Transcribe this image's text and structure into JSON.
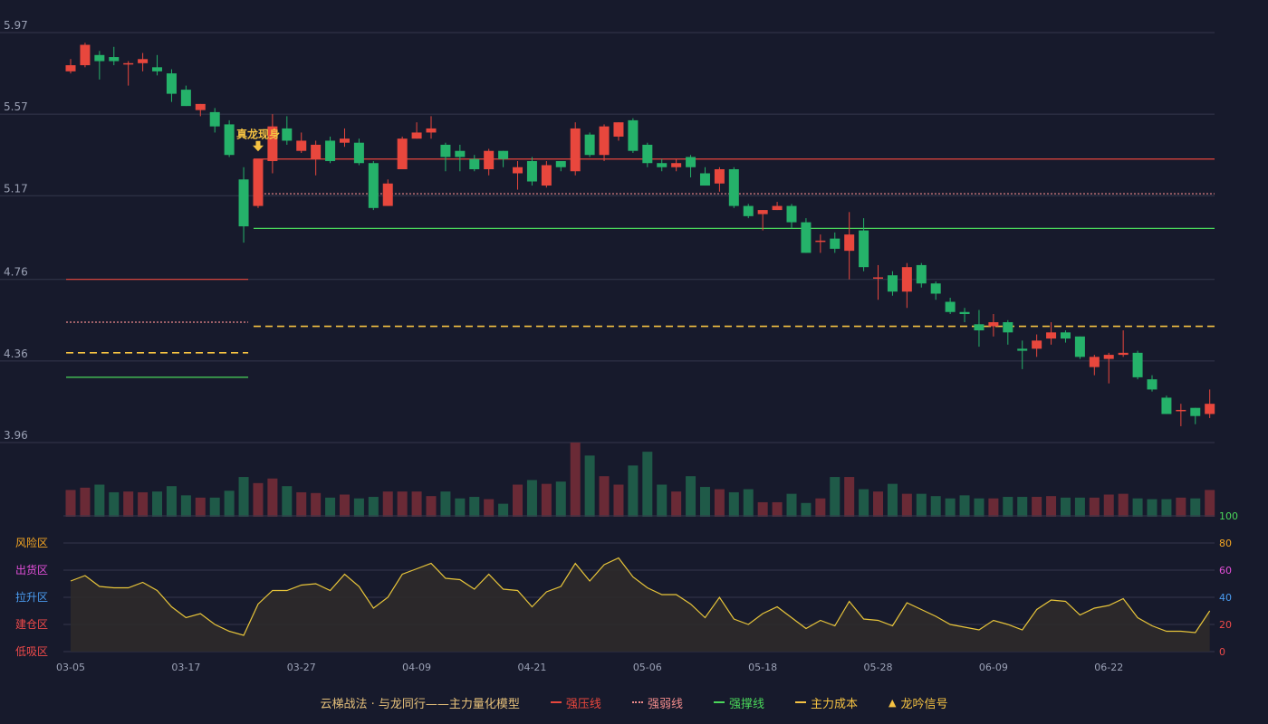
{
  "chart_data": {
    "type": "candlestick",
    "title": "",
    "price_axis": {
      "min": 3.96,
      "max": 5.97,
      "ticks": [
        "5.97",
        "5.57",
        "5.17",
        "4.76",
        "4.36",
        "3.96"
      ]
    },
    "x_ticks": [
      {
        "index": 0,
        "label": "03-05"
      },
      {
        "index": 8,
        "label": "03-17"
      },
      {
        "index": 16,
        "label": "03-27"
      },
      {
        "index": 24,
        "label": "04-09"
      },
      {
        "index": 32,
        "label": "04-21"
      },
      {
        "index": 40,
        "label": "05-06"
      },
      {
        "index": 48,
        "label": "05-18"
      },
      {
        "index": 56,
        "label": "05-28"
      },
      {
        "index": 64,
        "label": "06-09"
      },
      {
        "index": 72,
        "label": "06-22"
      }
    ],
    "candles": [
      [
        5.78,
        5.81,
        5.84,
        5.77
      ],
      [
        5.81,
        5.91,
        5.92,
        5.8
      ],
      [
        5.86,
        5.83,
        5.88,
        5.74
      ],
      [
        5.85,
        5.83,
        5.9,
        5.81
      ],
      [
        5.82,
        5.82,
        5.83,
        5.71
      ],
      [
        5.82,
        5.84,
        5.87,
        5.78
      ],
      [
        5.8,
        5.78,
        5.86,
        5.76
      ],
      [
        5.77,
        5.67,
        5.79,
        5.63
      ],
      [
        5.69,
        5.61,
        5.71,
        5.61
      ],
      [
        5.59,
        5.62,
        5.62,
        5.56
      ],
      [
        5.58,
        5.51,
        5.6,
        5.48
      ],
      [
        5.52,
        5.37,
        5.54,
        5.36
      ],
      [
        5.25,
        5.02,
        5.31,
        4.94
      ],
      [
        5.12,
        5.35,
        5.35,
        5.11
      ],
      [
        5.34,
        5.51,
        5.57,
        5.28
      ],
      [
        5.5,
        5.44,
        5.56,
        5.42
      ],
      [
        5.39,
        5.44,
        5.48,
        5.38
      ],
      [
        5.35,
        5.42,
        5.44,
        5.27
      ],
      [
        5.44,
        5.34,
        5.46,
        5.33
      ],
      [
        5.43,
        5.45,
        5.5,
        5.41
      ],
      [
        5.43,
        5.33,
        5.45,
        5.32
      ],
      [
        5.33,
        5.11,
        5.34,
        5.1
      ],
      [
        5.12,
        5.23,
        5.25,
        5.12
      ],
      [
        5.3,
        5.45,
        5.46,
        5.3
      ],
      [
        5.45,
        5.48,
        5.53,
        5.45
      ],
      [
        5.48,
        5.5,
        5.56,
        5.45
      ],
      [
        5.42,
        5.36,
        5.43,
        5.29
      ],
      [
        5.39,
        5.36,
        5.42,
        5.29
      ],
      [
        5.35,
        5.3,
        5.37,
        5.29
      ],
      [
        5.3,
        5.39,
        5.4,
        5.27
      ],
      [
        5.39,
        5.35,
        5.39,
        5.31
      ],
      [
        5.28,
        5.31,
        5.34,
        5.2
      ],
      [
        5.34,
        5.24,
        5.36,
        5.22
      ],
      [
        5.22,
        5.32,
        5.34,
        5.21
      ],
      [
        5.34,
        5.31,
        5.34,
        5.29
      ],
      [
        5.29,
        5.5,
        5.53,
        5.27
      ],
      [
        5.47,
        5.37,
        5.48,
        5.36
      ],
      [
        5.37,
        5.51,
        5.52,
        5.34
      ],
      [
        5.46,
        5.53,
        5.53,
        5.44
      ],
      [
        5.54,
        5.39,
        5.55,
        5.38
      ],
      [
        5.42,
        5.33,
        5.43,
        5.31
      ],
      [
        5.33,
        5.31,
        5.35,
        5.29
      ],
      [
        5.31,
        5.33,
        5.35,
        5.29
      ],
      [
        5.36,
        5.31,
        5.37,
        5.26
      ],
      [
        5.28,
        5.22,
        5.31,
        5.22
      ],
      [
        5.23,
        5.3,
        5.31,
        5.19
      ],
      [
        5.3,
        5.12,
        5.31,
        5.11
      ],
      [
        5.12,
        5.07,
        5.13,
        5.06
      ],
      [
        5.08,
        5.1,
        5.1,
        5.0
      ],
      [
        5.1,
        5.12,
        5.14,
        5.1
      ],
      [
        5.12,
        5.04,
        5.13,
        5.01
      ],
      [
        5.04,
        4.89,
        5.06,
        4.89
      ],
      [
        4.95,
        4.95,
        4.98,
        4.89
      ],
      [
        4.96,
        4.91,
        4.99,
        4.89
      ],
      [
        4.9,
        4.98,
        5.09,
        4.76
      ],
      [
        5.0,
        4.82,
        5.06,
        4.8
      ],
      [
        4.77,
        4.77,
        4.83,
        4.66
      ],
      [
        4.78,
        4.7,
        4.8,
        4.68
      ],
      [
        4.7,
        4.82,
        4.84,
        4.62
      ],
      [
        4.83,
        4.74,
        4.84,
        4.72
      ],
      [
        4.74,
        4.69,
        4.75,
        4.66
      ],
      [
        4.65,
        4.6,
        4.67,
        4.59
      ],
      [
        4.6,
        4.59,
        4.62,
        4.55
      ],
      [
        4.54,
        4.51,
        4.61,
        4.43
      ],
      [
        4.53,
        4.55,
        4.59,
        4.48
      ],
      [
        4.55,
        4.5,
        4.56,
        4.44
      ],
      [
        4.42,
        4.41,
        4.46,
        4.32
      ],
      [
        4.42,
        4.46,
        4.49,
        4.38
      ],
      [
        4.47,
        4.5,
        4.55,
        4.44
      ],
      [
        4.5,
        4.47,
        4.51,
        4.45
      ],
      [
        4.48,
        4.38,
        4.48,
        4.37
      ],
      [
        4.33,
        4.38,
        4.39,
        4.29
      ],
      [
        4.37,
        4.39,
        4.4,
        4.25
      ],
      [
        4.39,
        4.4,
        4.51,
        4.38
      ],
      [
        4.4,
        4.28,
        4.41,
        4.27
      ],
      [
        4.27,
        4.22,
        4.29,
        4.21
      ],
      [
        4.18,
        4.1,
        4.19,
        4.1
      ],
      [
        4.12,
        4.12,
        4.15,
        4.04
      ],
      [
        4.13,
        4.09,
        4.13,
        4.05
      ],
      [
        4.1,
        4.15,
        4.22,
        4.08
      ]
    ],
    "volume": [
      35,
      38,
      42,
      32,
      33,
      32,
      33,
      40,
      28,
      25,
      25,
      34,
      52,
      44,
      50,
      40,
      32,
      31,
      25,
      29,
      24,
      26,
      33,
      33,
      33,
      27,
      33,
      24,
      26,
      23,
      17,
      42,
      48,
      43,
      46,
      97,
      80,
      53,
      42,
      67,
      85,
      42,
      33,
      53,
      39,
      36,
      32,
      36,
      19,
      19,
      30,
      18,
      24,
      52,
      52,
      36,
      33,
      43,
      30,
      30,
      27,
      24,
      28,
      24,
      24,
      26,
      26,
      26,
      27,
      25,
      25,
      25,
      29,
      30,
      24,
      23,
      23,
      25,
      24,
      35
    ],
    "volume_up_color": "#6a2a36",
    "volume_down_color": "#1f5a48",
    "up_color": "#e8473d",
    "down_color": "#25b26a",
    "reference_lines": [
      {
        "name": "强压线",
        "segments": [
          {
            "from": 0,
            "to": 12,
            "value": 4.76
          },
          {
            "from": 13,
            "to": 79,
            "value": 5.35
          }
        ],
        "color": "#e8473d",
        "dash": ""
      },
      {
        "name": "强弱线",
        "segments": [
          {
            "from": 0,
            "to": 12,
            "value": 4.55
          },
          {
            "from": 13,
            "to": 79,
            "value": 5.18
          }
        ],
        "color": "#f08b8b",
        "dash": "2,2"
      },
      {
        "name": "强撑线",
        "segments": [
          {
            "from": 0,
            "to": 12,
            "value": 4.28
          },
          {
            "from": 13,
            "to": 79,
            "value": 5.01
          }
        ],
        "color": "#4ad65a",
        "dash": ""
      },
      {
        "name": "主力成本",
        "segments": [
          {
            "from": 0,
            "to": 12,
            "value": 4.4
          },
          {
            "from": 13,
            "to": 79,
            "value": 4.53
          }
        ],
        "color": "#f5c242",
        "dash": "8,5"
      }
    ],
    "signals": [
      {
        "index": 13,
        "label": "真龙现身"
      }
    ],
    "oscillator": {
      "range": [
        0,
        100
      ],
      "ticks": [
        "0",
        "20",
        "40",
        "60",
        "80",
        "100"
      ],
      "zones": [
        {
          "label": "风险区",
          "color": "#f5a623"
        },
        {
          "label": "出货区",
          "color": "#e24fd8"
        },
        {
          "label": "拉升区",
          "color": "#4a9cf0"
        },
        {
          "label": "建仓区",
          "color": "#ef4a4a"
        },
        {
          "label": "低吸区",
          "color": "#ef4a4a"
        }
      ],
      "tick_colors": [
        "#ef4a4a",
        "#ef4a4a",
        "#4a9cf0",
        "#e24fd8",
        "#f5a623",
        "#4ad65a"
      ],
      "values": [
        52,
        56,
        48,
        47,
        47,
        51,
        45,
        33,
        25,
        28,
        20,
        15,
        12,
        35,
        45,
        45,
        49,
        50,
        45,
        57,
        48,
        32,
        40,
        57,
        61,
        65,
        54,
        53,
        46,
        57,
        46,
        45,
        33,
        44,
        48,
        65,
        52,
        64,
        69,
        55,
        47,
        42,
        42,
        35,
        25,
        40,
        24,
        20,
        28,
        33,
        25,
        17,
        23,
        19,
        37,
        24,
        23,
        19,
        36,
        31,
        26,
        20,
        18,
        16,
        23,
        20,
        16,
        31,
        38,
        37,
        27,
        32,
        34,
        39,
        25,
        19,
        15,
        15,
        14,
        30
      ],
      "line_color": "#e8c53a"
    },
    "legend": {
      "title": "云梯战法 · 与龙同行——主力量化模型",
      "items": [
        {
          "label": "强压线",
          "color": "#e8473d",
          "style": "solid"
        },
        {
          "label": "强弱线",
          "color": "#f08b8b",
          "style": "dotted"
        },
        {
          "label": "强撑线",
          "color": "#4ad65a",
          "style": "solid"
        },
        {
          "label": "主力成本",
          "color": "#f5c242",
          "style": "dashed"
        },
        {
          "label": "龙吟信号",
          "color": "#f5c242",
          "style": "triangle"
        }
      ]
    }
  }
}
